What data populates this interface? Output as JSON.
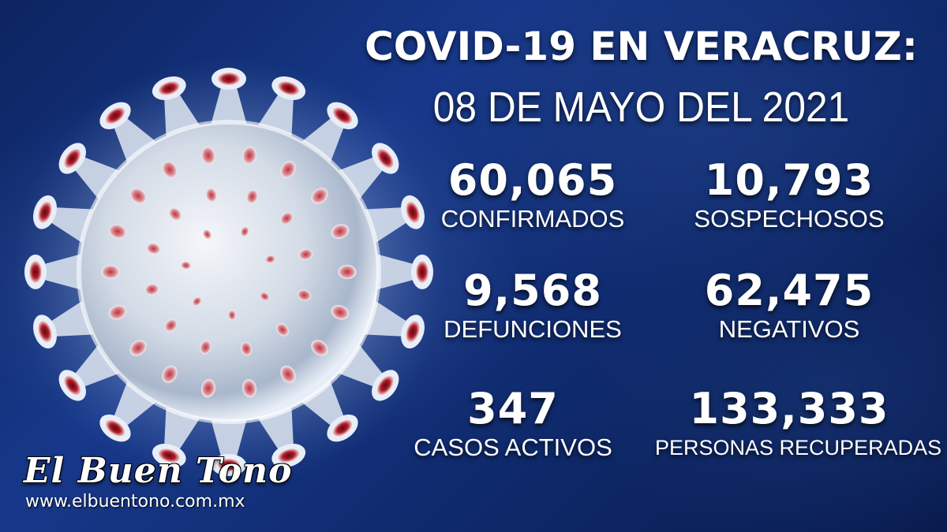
{
  "header": {
    "title": "COVID-19 EN VERACRUZ:",
    "date": "08 DE MAYO DEL 2021"
  },
  "stats": [
    {
      "value": "60,065",
      "label": "CONFIRMADOS"
    },
    {
      "value": "10,793",
      "label": "SOSPECHOSOS"
    },
    {
      "value": "9,568",
      "label": "DEFUNCIONES"
    },
    {
      "value": "62,475",
      "label": "NEGATIVOS"
    },
    {
      "value": "347",
      "label": "CASOS ACTIVOS"
    },
    {
      "value": "133,333",
      "label": "PERSONAS RECUPERADAS"
    }
  ],
  "brand": {
    "logo_text": "El Buen Tono",
    "url": "www.elbuentono.com.mx"
  },
  "colors": {
    "background": "#0f2a6c",
    "text": "#ffffff",
    "virus_body": "#d9e2ee",
    "virus_spike_tip": "#b01c2a"
  },
  "icons": {
    "illustration": "coronavirus-icon"
  }
}
